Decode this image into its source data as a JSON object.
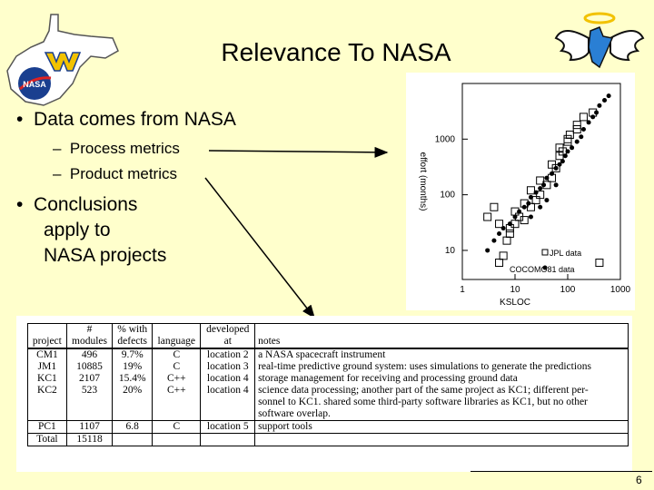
{
  "slide": {
    "title": "Relevance To NASA",
    "bullets": [
      {
        "text": "Data comes from NASA",
        "subitems": [
          "Process metrics",
          "Product metrics"
        ]
      },
      {
        "line1": "Conclusions",
        "line2": "apply to",
        "line3": "NASA projects"
      }
    ],
    "page_number": "6"
  },
  "logos": {
    "left_logo_text": "NASA",
    "accent_gold": "#f2c200",
    "accent_blue": "#1a3f8f"
  },
  "plot": {
    "ylabel": "effort (months)",
    "xlabel": "KSLOC",
    "yticks": [
      "1000",
      "100",
      "10"
    ],
    "xticks": [
      "1",
      "10",
      "100",
      "1000"
    ],
    "legend": [
      "JPL data",
      "COCOMO81 data"
    ]
  },
  "chart_data": {
    "type": "scatter",
    "title": "",
    "xlabel": "KSLOC",
    "ylabel": "effort (months)",
    "xscale": "log",
    "yscale": "log",
    "xlim": [
      1,
      1000
    ],
    "ylim": [
      3,
      10000
    ],
    "legend": "bottom-right",
    "series": [
      {
        "name": "JPL data",
        "marker": "square",
        "x": [
          5,
          6,
          7,
          8,
          10,
          12,
          15,
          20,
          25,
          30,
          40,
          50,
          60,
          70,
          80,
          100,
          110,
          150,
          200,
          3,
          4,
          5,
          8,
          10,
          15,
          20,
          30,
          50,
          70,
          100,
          150,
          300,
          400
        ],
        "y": [
          6,
          8,
          15,
          20,
          30,
          40,
          35,
          60,
          80,
          100,
          150,
          200,
          300,
          500,
          600,
          900,
          1200,
          1500,
          2500,
          40,
          60,
          30,
          25,
          50,
          70,
          120,
          180,
          350,
          700,
          1000,
          1800,
          3000,
          6
        ]
      },
      {
        "name": "COCOMO81 data",
        "marker": "dot",
        "x": [
          3,
          4,
          5,
          6,
          8,
          10,
          12,
          15,
          18,
          20,
          25,
          30,
          35,
          40,
          50,
          60,
          70,
          80,
          90,
          100,
          120,
          150,
          180,
          200,
          250,
          300,
          350,
          400,
          500,
          600,
          20,
          30,
          40,
          60
        ],
        "y": [
          10,
          15,
          20,
          25,
          30,
          40,
          50,
          60,
          70,
          90,
          110,
          130,
          150,
          200,
          240,
          300,
          350,
          400,
          500,
          600,
          700,
          900,
          1100,
          1500,
          2000,
          2500,
          3000,
          4000,
          5000,
          6000,
          40,
          60,
          80,
          150
        ]
      }
    ]
  },
  "table": {
    "header1": [
      "",
      "#",
      "% with",
      "",
      "developed",
      ""
    ],
    "header2": [
      "project",
      "modules",
      "defects",
      "language",
      "at",
      "notes"
    ],
    "rows": [
      {
        "project": "CM1",
        "modules": "496",
        "defects": "9.7%",
        "language": "C",
        "at": "location 2",
        "notes": "a NASA spacecraft instrument"
      },
      {
        "project": "JM1",
        "modules": "10885",
        "defects": "19%",
        "language": "C",
        "at": "location 3",
        "notes": "real-time predictive ground system: uses simulations to generate the predictions"
      },
      {
        "project": "KC1",
        "modules": "2107",
        "defects": "15.4%",
        "language": "C++",
        "at": "location 4",
        "notes": "storage management for receiving and processing ground data"
      },
      {
        "project": "KC2",
        "modules": "523",
        "defects": "20%",
        "language": "C++",
        "at": "location 4",
        "notes_lines": [
          "science data processing; another part of the same project as KC1; different per-",
          "sonnel to KC1. shared some third-party software libraries as KC1, but no other",
          "software overlap."
        ]
      },
      {
        "project": "PC1",
        "modules": "1107",
        "defects": "6.8",
        "language": "C",
        "at": "location 5",
        "notes": "support tools"
      },
      {
        "project": "Total",
        "modules": "15118",
        "defects": "",
        "language": "",
        "at": "",
        "notes": ""
      }
    ]
  }
}
